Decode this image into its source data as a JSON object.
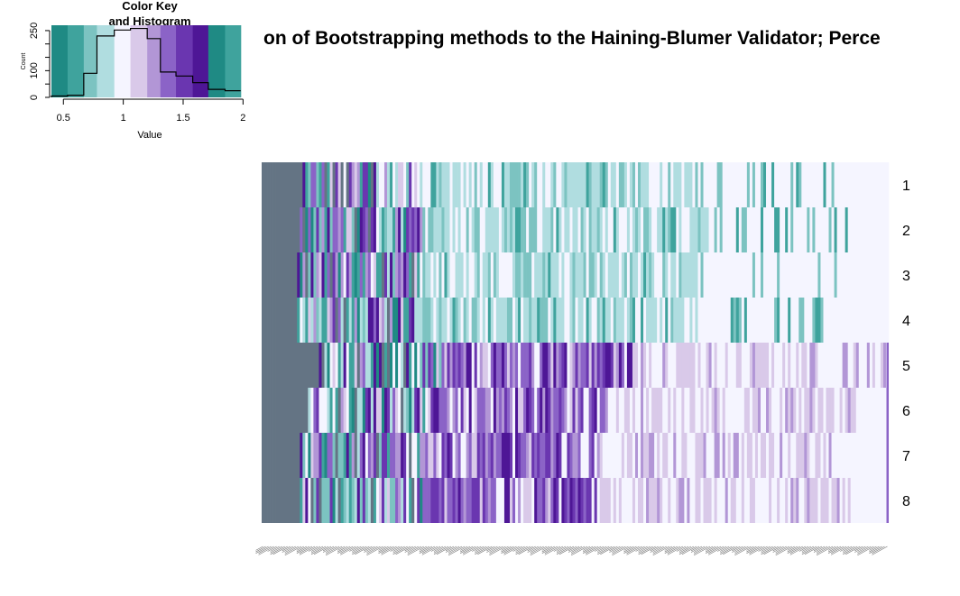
{
  "chart_data": [
    {
      "type": "heatmap",
      "title": "on of Bootstrapping methods to the Haining-Blumer Validator; Perce",
      "rows": [
        "1",
        "2",
        "3",
        "4",
        "5",
        "6",
        "7",
        "8"
      ],
      "column_labels_note": "",
      "palette": [
        "#1f8a84",
        "#3fa39d",
        "#7cc3c1",
        "#b0dde0",
        "#f5f5ff",
        "#d9c9e9",
        "#b296d6",
        "#8b63c7",
        "#6a36b0",
        "#4e1696"
      ],
      "missing_color": "#647484",
      "value_range": [
        0.4,
        2.05
      ],
      "row_summary": [
        {
          "row": "1",
          "tendency": "low (teal)"
        },
        {
          "row": "2",
          "tendency": "low (teal)"
        },
        {
          "row": "3",
          "tendency": "low (teal)"
        },
        {
          "row": "4",
          "tendency": "low (teal)"
        },
        {
          "row": "5",
          "tendency": "high (purple)"
        },
        {
          "row": "6",
          "tendency": "high (purple)"
        },
        {
          "row": "7",
          "tendency": "high (purple)"
        },
        {
          "row": "8",
          "tendency": "high (purple)"
        }
      ]
    },
    {
      "type": "bar",
      "title": "Color Key and Histogram",
      "title_lines": [
        "Color Key",
        "and Histogram"
      ],
      "xlabel": "Value",
      "ylabel": "Count",
      "xticks": [
        "0.5",
        "1",
        "1.5",
        "2"
      ],
      "xtick_values": [
        0.5,
        1,
        1.5,
        2
      ],
      "yticks": [
        "0",
        "100",
        "250"
      ],
      "ytick_values": [
        0,
        100,
        250
      ],
      "xlim": [
        0.4,
        2.05
      ],
      "ylim": [
        0,
        270
      ],
      "bin_edges": [
        0.4,
        0.535,
        0.67,
        0.78,
        0.925,
        1.06,
        1.2,
        1.31,
        1.44,
        1.58,
        1.71,
        1.85,
        1.98
      ],
      "counts": [
        5,
        8,
        90,
        230,
        252,
        258,
        220,
        95,
        80,
        55,
        30,
        25
      ],
      "colors": [
        "#1f8a84",
        "#3fa39d",
        "#7cc3c1",
        "#b0dde0",
        "#f5f5ff",
        "#d9c9e9",
        "#b296d6",
        "#8b63c7",
        "#6a36b0",
        "#4e1696"
      ]
    }
  ]
}
